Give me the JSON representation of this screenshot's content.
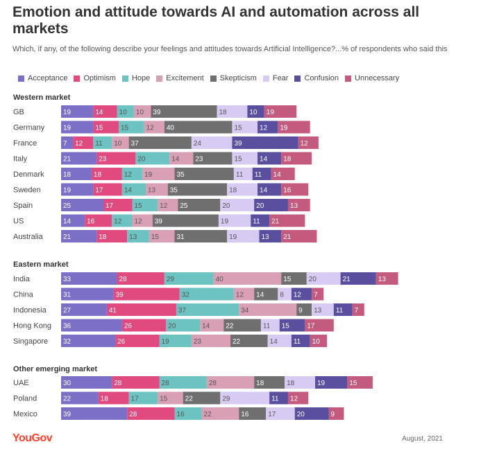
{
  "header": {
    "title": "Emotion and attitude towards AI and automation across all markets",
    "subtitle": "Which, if any, of the following describe your feelings and attitudes towards Artificial Intelligence?...% of respondents who said this"
  },
  "footer": {
    "logo": "YouGov",
    "date": "August, 2021"
  },
  "chart_data": {
    "type": "bar",
    "orientation": "horizontal",
    "stacked": true,
    "title": "Emotion and attitude towards AI and automation across all markets",
    "subtitle": "Which, if any, of the following describe your feelings and attitudes towards Artificial Intelligence?...% of respondents who said this",
    "xlabel": "",
    "ylabel": "",
    "legend_position": "top",
    "grid": false,
    "series": [
      {
        "name": "Acceptance",
        "color": "#7b6fc7"
      },
      {
        "name": "Optimism",
        "color": "#e04a7f"
      },
      {
        "name": "Hope",
        "color": "#6dc3c2"
      },
      {
        "name": "Excitement",
        "color": "#d99fb4"
      },
      {
        "name": "Skepticism",
        "color": "#6f6f6f"
      },
      {
        "name": "Fear",
        "color": "#d8cbf3"
      },
      {
        "name": "Confusion",
        "color": "#5a4e9f"
      },
      {
        "name": "Unnecessary",
        "color": "#c55a7f"
      }
    ],
    "groups": [
      {
        "name": "Western market",
        "rows": [
          {
            "label": "GB",
            "values": [
              19,
              14,
              10,
              10,
              39,
              18,
              10,
              19
            ]
          },
          {
            "label": "Germany",
            "values": [
              19,
              15,
              15,
              12,
              40,
              15,
              12,
              19
            ]
          },
          {
            "label": "France",
            "values": [
              7,
              12,
              11,
              10,
              37,
              24,
              39,
              12
            ]
          },
          {
            "label": "Italy",
            "values": [
              21,
              23,
              20,
              14,
              23,
              15,
              14,
              18
            ]
          },
          {
            "label": "Denmark",
            "values": [
              18,
              18,
              12,
              19,
              35,
              11,
              11,
              14
            ]
          },
          {
            "label": "Sweden",
            "values": [
              19,
              17,
              14,
              13,
              35,
              18,
              14,
              16
            ]
          },
          {
            "label": "Spain",
            "values": [
              25,
              17,
              15,
              12,
              25,
              20,
              20,
              13
            ]
          },
          {
            "label": "US",
            "values": [
              14,
              16,
              12,
              12,
              39,
              19,
              11,
              21
            ]
          },
          {
            "label": "Australia",
            "values": [
              21,
              18,
              13,
              15,
              31,
              19,
              13,
              21
            ]
          }
        ]
      },
      {
        "name": "Eastern market",
        "rows": [
          {
            "label": "India",
            "values": [
              33,
              28,
              29,
              40,
              15,
              20,
              21,
              13
            ]
          },
          {
            "label": "China",
            "values": [
              31,
              39,
              32,
              12,
              14,
              8,
              12,
              7
            ]
          },
          {
            "label": "Indonesia",
            "values": [
              27,
              41,
              37,
              34,
              9,
              13,
              11,
              7
            ]
          },
          {
            "label": "Hong Kong",
            "values": [
              36,
              26,
              20,
              14,
              22,
              11,
              15,
              17
            ]
          },
          {
            "label": "Singapore",
            "values": [
              32,
              26,
              19,
              23,
              22,
              14,
              11,
              10
            ]
          }
        ]
      },
      {
        "name": "Other emerging market",
        "rows": [
          {
            "label": "UAE",
            "values": [
              30,
              28,
              28,
              28,
              18,
              18,
              19,
              15
            ]
          },
          {
            "label": "Poland",
            "values": [
              22,
              18,
              17,
              15,
              22,
              29,
              11,
              12
            ]
          },
          {
            "label": "Mexico",
            "values": [
              39,
              28,
              16,
              22,
              16,
              17,
              20,
              9
            ]
          }
        ]
      }
    ]
  }
}
